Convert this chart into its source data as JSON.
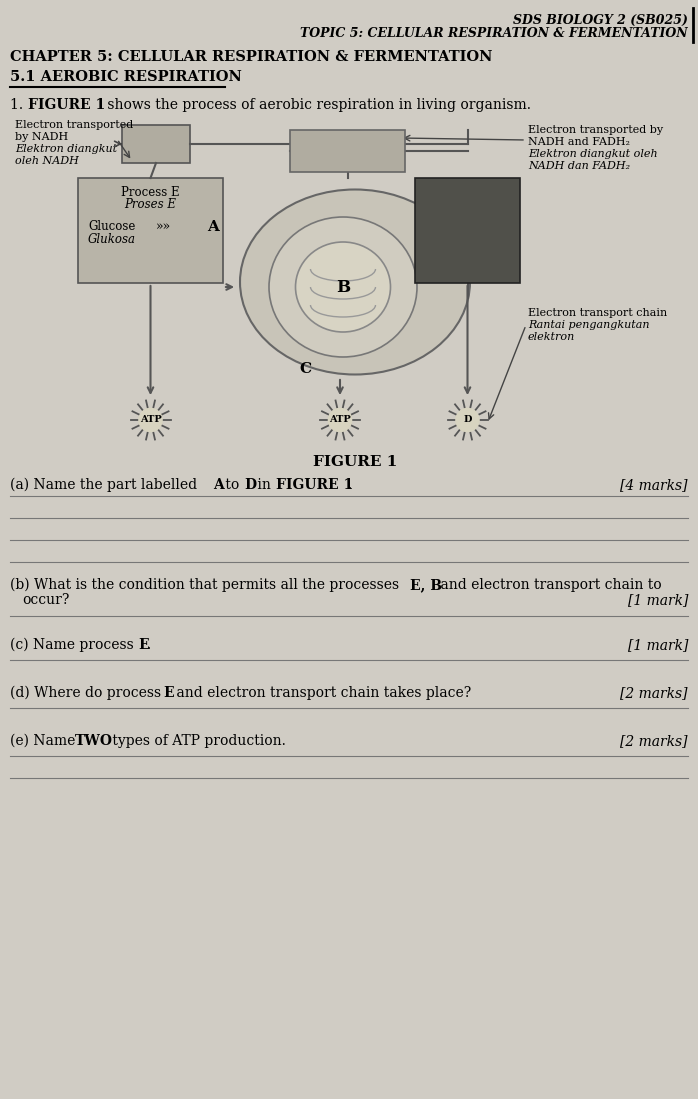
{
  "bg_color": "#d0ccc4",
  "header_line1": "SDS BIOLOGY 2 (SB025)",
  "header_line2": "TOPIC 5: CELLULAR RESPIRATION & FERMENTATION",
  "chapter_title": "CHAPTER 5: CELLULAR RESPIRATION & FERMENTATION",
  "section_title": "5.1 AEROBIC RESPIRATION",
  "question_intro_1": "1.  FIGURE 1",
  "question_intro_2": " shows the process of aerobic respiration in living organism.",
  "fig_caption": "FIGURE 1",
  "q_a_marks": "[4 marks]",
  "q_b_marks": "[1 mark]",
  "q_c_marks": "[1 mark]",
  "q_d_marks": "[2 marks]",
  "q_e_marks": "[2 marks]",
  "left_label1": "Electron transported",
  "left_label2": "by NADH",
  "left_label3": "Elektron diangkut",
  "left_label4": "oleh NADH",
  "right_label1": "Electron transported by",
  "right_label2": "NADH and FADH₂",
  "right_label3": "Elektron diangkut oleh",
  "right_label4": "NADH dan FADH₂",
  "box_label_process": "Process E",
  "box_label_proses": "Proses E",
  "box_label_glucose": "Glucose",
  "box_label_glukosa": "Glukosa",
  "label_A": "A",
  "label_B": "B",
  "label_C": "C",
  "label_D": "D",
  "label_etc": "Electron transport chain",
  "label_etc2": "Rantai pengangkutan",
  "label_etc3": "elektron",
  "atp_label": "ATP"
}
